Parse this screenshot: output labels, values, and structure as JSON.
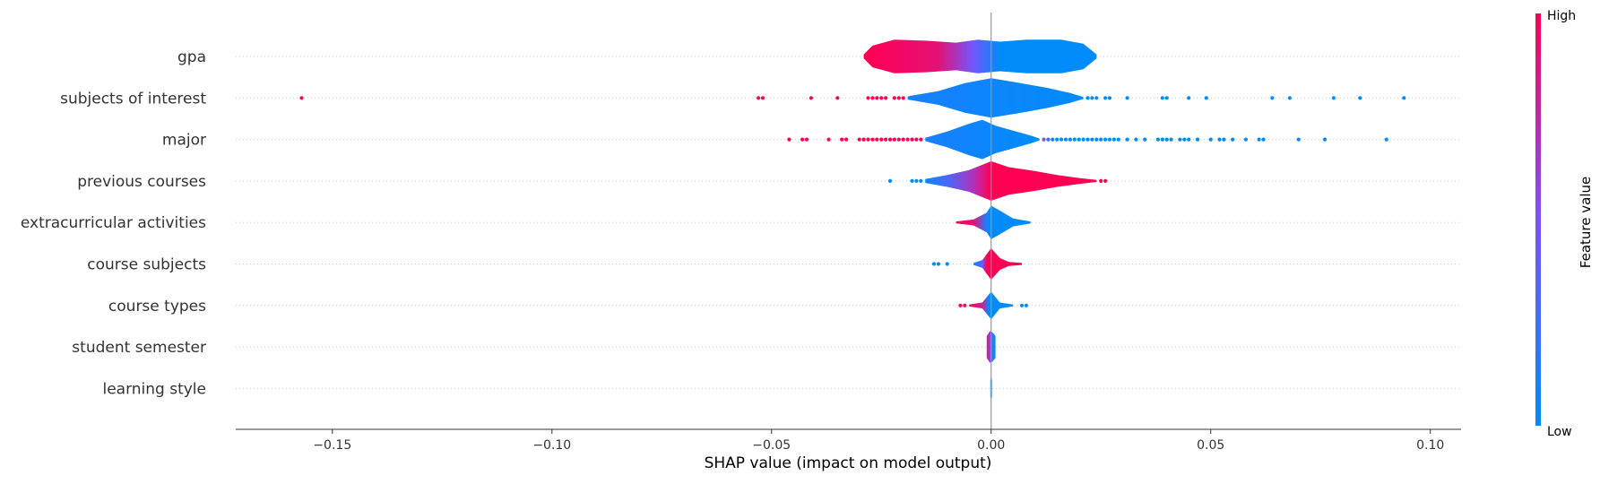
{
  "chart_data": {
    "type": "violin",
    "title": "",
    "xlabel": "SHAP value (impact on model output)",
    "xlim": [
      -0.172,
      0.107
    ],
    "xticks": [
      -0.15,
      -0.1,
      -0.05,
      0.0,
      0.05,
      0.1
    ],
    "xtick_labels": [
      "−0.15",
      "−0.10",
      "−0.05",
      "0.00",
      "0.05",
      "0.10"
    ],
    "reference_line": 0.0,
    "grid": "dotted-horizontal",
    "colors": {
      "low": "#008bfb",
      "high": "#ff0052",
      "axis": "#333333",
      "zero_line": "#999999",
      "grid": "#cccccc"
    },
    "colorbar": {
      "label": "Feature value",
      "high_label": "High",
      "low_label": "Low",
      "placement": "right"
    },
    "features": [
      {
        "name": "gpa",
        "range": [
          -0.029,
          0.024
        ],
        "profile": [
          [
            -0.029,
            0.1
          ],
          [
            -0.027,
            0.55
          ],
          [
            -0.022,
            0.85
          ],
          [
            -0.015,
            0.8
          ],
          [
            -0.008,
            0.7
          ],
          [
            -0.003,
            0.85
          ],
          [
            0.002,
            0.75
          ],
          [
            0.008,
            0.85
          ],
          [
            0.016,
            0.85
          ],
          [
            0.021,
            0.65
          ],
          [
            0.024,
            0.1
          ]
        ],
        "color_stops": [
          [
            -0.029,
            1
          ],
          [
            -0.012,
            0.9
          ],
          [
            -0.004,
            0.45
          ],
          [
            0.002,
            0.0
          ],
          [
            0.024,
            0.0
          ]
        ],
        "outliers": []
      },
      {
        "name": "subjects of interest",
        "range": [
          -0.019,
          0.021
        ],
        "profile": [
          [
            -0.019,
            0.08
          ],
          [
            -0.012,
            0.35
          ],
          [
            -0.006,
            0.75
          ],
          [
            0.0,
            1.0
          ],
          [
            0.006,
            0.78
          ],
          [
            0.013,
            0.5
          ],
          [
            0.018,
            0.25
          ],
          [
            0.021,
            0.05
          ]
        ],
        "color_stops": [
          [
            -0.019,
            0.1
          ],
          [
            0.021,
            0.0
          ]
        ],
        "outliers": [
          {
            "x": -0.157,
            "v": 1
          },
          {
            "x": -0.053,
            "v": 1
          },
          {
            "x": -0.052,
            "v": 1
          },
          {
            "x": -0.041,
            "v": 1
          },
          {
            "x": -0.035,
            "v": 1
          },
          {
            "x": -0.028,
            "v": 1
          },
          {
            "x": -0.027,
            "v": 1
          },
          {
            "x": -0.026,
            "v": 1
          },
          {
            "x": -0.025,
            "v": 1
          },
          {
            "x": -0.024,
            "v": 1
          },
          {
            "x": -0.022,
            "v": 1
          },
          {
            "x": -0.021,
            "v": 1
          },
          {
            "x": -0.02,
            "v": 1
          },
          {
            "x": 0.022,
            "v": 0
          },
          {
            "x": 0.023,
            "v": 0
          },
          {
            "x": 0.024,
            "v": 0
          },
          {
            "x": 0.026,
            "v": 0
          },
          {
            "x": 0.027,
            "v": 0
          },
          {
            "x": 0.031,
            "v": 0
          },
          {
            "x": 0.039,
            "v": 0
          },
          {
            "x": 0.04,
            "v": 0
          },
          {
            "x": 0.045,
            "v": 0
          },
          {
            "x": 0.049,
            "v": 0
          },
          {
            "x": 0.064,
            "v": 0
          },
          {
            "x": 0.068,
            "v": 0
          },
          {
            "x": 0.078,
            "v": 0
          },
          {
            "x": 0.084,
            "v": 0
          },
          {
            "x": 0.094,
            "v": 0
          }
        ]
      },
      {
        "name": "major",
        "range": [
          -0.015,
          0.011
        ],
        "profile": [
          [
            -0.015,
            0.08
          ],
          [
            -0.01,
            0.4
          ],
          [
            -0.005,
            0.8
          ],
          [
            -0.002,
            1.0
          ],
          [
            0.001,
            0.7
          ],
          [
            0.005,
            0.45
          ],
          [
            0.009,
            0.2
          ],
          [
            0.011,
            0.05
          ]
        ],
        "color_stops": [
          [
            -0.015,
            0.1
          ],
          [
            0.011,
            0.0
          ]
        ],
        "outliers": [
          {
            "x": -0.046,
            "v": 1
          },
          {
            "x": -0.043,
            "v": 1
          },
          {
            "x": -0.042,
            "v": 1
          },
          {
            "x": -0.037,
            "v": 1
          },
          {
            "x": -0.034,
            "v": 1
          },
          {
            "x": -0.033,
            "v": 1
          },
          {
            "x": -0.03,
            "v": 1
          },
          {
            "x": -0.029,
            "v": 1
          },
          {
            "x": -0.028,
            "v": 1
          },
          {
            "x": -0.027,
            "v": 1
          },
          {
            "x": -0.026,
            "v": 1
          },
          {
            "x": -0.025,
            "v": 1
          },
          {
            "x": -0.024,
            "v": 1
          },
          {
            "x": -0.023,
            "v": 1
          },
          {
            "x": -0.022,
            "v": 1
          },
          {
            "x": -0.021,
            "v": 1
          },
          {
            "x": -0.02,
            "v": 1
          },
          {
            "x": -0.019,
            "v": 1
          },
          {
            "x": -0.018,
            "v": 1
          },
          {
            "x": -0.017,
            "v": 1
          },
          {
            "x": -0.016,
            "v": 1
          },
          {
            "x": 0.012,
            "v": 0.5
          },
          {
            "x": 0.013,
            "v": 0.3
          },
          {
            "x": 0.014,
            "v": 0
          },
          {
            "x": 0.015,
            "v": 0
          },
          {
            "x": 0.016,
            "v": 0
          },
          {
            "x": 0.017,
            "v": 0
          },
          {
            "x": 0.018,
            "v": 0
          },
          {
            "x": 0.019,
            "v": 0
          },
          {
            "x": 0.02,
            "v": 0
          },
          {
            "x": 0.021,
            "v": 0
          },
          {
            "x": 0.022,
            "v": 0
          },
          {
            "x": 0.023,
            "v": 0
          },
          {
            "x": 0.024,
            "v": 0
          },
          {
            "x": 0.025,
            "v": 0
          },
          {
            "x": 0.026,
            "v": 0
          },
          {
            "x": 0.027,
            "v": 0
          },
          {
            "x": 0.028,
            "v": 0
          },
          {
            "x": 0.029,
            "v": 0
          },
          {
            "x": 0.031,
            "v": 0
          },
          {
            "x": 0.033,
            "v": 0
          },
          {
            "x": 0.035,
            "v": 0
          },
          {
            "x": 0.038,
            "v": 0
          },
          {
            "x": 0.039,
            "v": 0
          },
          {
            "x": 0.04,
            "v": 0
          },
          {
            "x": 0.041,
            "v": 0
          },
          {
            "x": 0.043,
            "v": 0
          },
          {
            "x": 0.044,
            "v": 0
          },
          {
            "x": 0.045,
            "v": 0
          },
          {
            "x": 0.047,
            "v": 0
          },
          {
            "x": 0.05,
            "v": 0
          },
          {
            "x": 0.052,
            "v": 0
          },
          {
            "x": 0.053,
            "v": 0
          },
          {
            "x": 0.055,
            "v": 0
          },
          {
            "x": 0.058,
            "v": 0
          },
          {
            "x": 0.061,
            "v": 0
          },
          {
            "x": 0.062,
            "v": 0
          },
          {
            "x": 0.07,
            "v": 0
          },
          {
            "x": 0.076,
            "v": 0
          },
          {
            "x": 0.09,
            "v": 0
          }
        ]
      },
      {
        "name": "previous courses",
        "range": [
          -0.015,
          0.024
        ],
        "profile": [
          [
            -0.015,
            0.1
          ],
          [
            -0.01,
            0.3
          ],
          [
            -0.005,
            0.55
          ],
          [
            0.0,
            1.0
          ],
          [
            0.004,
            0.7
          ],
          [
            0.01,
            0.5
          ],
          [
            0.015,
            0.3
          ],
          [
            0.02,
            0.15
          ],
          [
            0.024,
            0.05
          ]
        ],
        "color_stops": [
          [
            -0.015,
            0.05
          ],
          [
            -0.01,
            0.3
          ],
          [
            -0.004,
            0.7
          ],
          [
            0.0,
            1.0
          ],
          [
            0.024,
            1.0
          ]
        ],
        "outliers": [
          {
            "x": -0.023,
            "v": 0
          },
          {
            "x": -0.018,
            "v": 0
          },
          {
            "x": -0.017,
            "v": 0
          },
          {
            "x": -0.016,
            "v": 0
          },
          {
            "x": 0.025,
            "v": 1
          },
          {
            "x": 0.026,
            "v": 1
          }
        ]
      },
      {
        "name": "extracurricular activities",
        "range": [
          -0.008,
          0.009
        ],
        "profile": [
          [
            -0.008,
            0.05
          ],
          [
            -0.004,
            0.15
          ],
          [
            -0.001,
            0.5
          ],
          [
            0.0,
            0.85
          ],
          [
            0.002,
            0.6
          ],
          [
            0.005,
            0.2
          ],
          [
            0.009,
            0.05
          ]
        ],
        "color_stops": [
          [
            -0.008,
            1.0
          ],
          [
            -0.004,
            0.9
          ],
          [
            -0.001,
            0.1
          ],
          [
            0.0,
            0.0
          ],
          [
            0.009,
            0.0
          ]
        ],
        "outliers": []
      },
      {
        "name": "course subjects",
        "range": [
          -0.004,
          0.007
        ],
        "profile": [
          [
            -0.004,
            0.05
          ],
          [
            -0.002,
            0.2
          ],
          [
            0.0,
            0.8
          ],
          [
            0.002,
            0.3
          ],
          [
            0.004,
            0.1
          ],
          [
            0.007,
            0.05
          ]
        ],
        "color_stops": [
          [
            -0.004,
            0.0
          ],
          [
            -0.002,
            0.4
          ],
          [
            -0.001,
            1.0
          ],
          [
            0.007,
            1.0
          ]
        ],
        "outliers": [
          {
            "x": -0.013,
            "v": 0
          },
          {
            "x": -0.012,
            "v": 0
          },
          {
            "x": -0.01,
            "v": 0
          }
        ]
      },
      {
        "name": "course types",
        "range": [
          -0.005,
          0.005
        ],
        "profile": [
          [
            -0.005,
            0.05
          ],
          [
            -0.002,
            0.15
          ],
          [
            0.0,
            0.7
          ],
          [
            0.002,
            0.15
          ],
          [
            0.005,
            0.05
          ]
        ],
        "color_stops": [
          [
            -0.005,
            1.0
          ],
          [
            -0.002,
            0.8
          ],
          [
            -0.0005,
            0.0
          ],
          [
            0.005,
            0.0
          ]
        ],
        "outliers": [
          {
            "x": -0.007,
            "v": 1
          },
          {
            "x": -0.006,
            "v": 1
          },
          {
            "x": 0.007,
            "v": 0
          },
          {
            "x": 0.008,
            "v": 0
          }
        ]
      },
      {
        "name": "student semester",
        "range": [
          -0.001,
          0.001
        ],
        "profile": [
          [
            -0.001,
            0.55
          ],
          [
            -0.0003,
            0.8
          ],
          [
            0.0003,
            0.75
          ],
          [
            0.001,
            0.55
          ]
        ],
        "color_stops": [
          [
            -0.001,
            0.85
          ],
          [
            -0.0002,
            0.6
          ],
          [
            0.0003,
            0.1
          ],
          [
            0.001,
            0.0
          ]
        ],
        "outliers": []
      },
      {
        "name": "learning style",
        "range": [
          -0.0002,
          0.0002
        ],
        "profile": [
          [
            -0.0002,
            0.4
          ],
          [
            0.0,
            0.65
          ],
          [
            0.0002,
            0.4
          ]
        ],
        "color_stops": [
          [
            -0.0002,
            0.0
          ],
          [
            0.0002,
            0.0
          ]
        ],
        "outliers": []
      }
    ]
  }
}
